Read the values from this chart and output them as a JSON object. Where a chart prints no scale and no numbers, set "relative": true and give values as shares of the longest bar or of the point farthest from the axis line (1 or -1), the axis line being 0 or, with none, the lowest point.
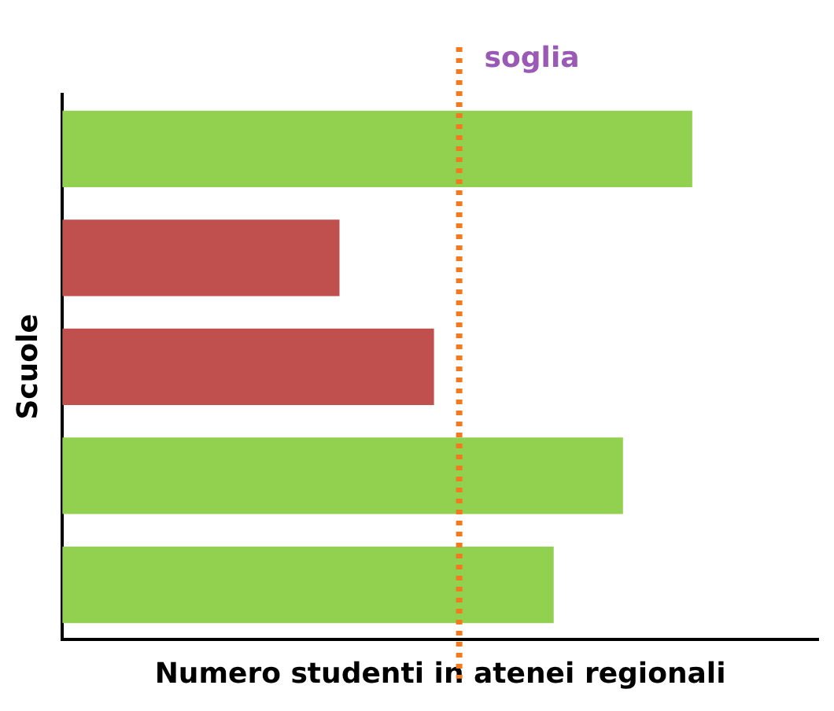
{
  "chart_data": {
    "type": "bar",
    "orientation": "horizontal",
    "relative": true,
    "xlabel": "Numero studenti in atenei regionali",
    "ylabel": "Scuole",
    "categories": [
      null,
      null,
      null,
      null,
      null
    ],
    "values": [
      1,
      0.44,
      0.59,
      0.89,
      0.78
    ],
    "colors": [
      "#92d050",
      "#c0504d",
      "#c0504d",
      "#92d050",
      "#92d050"
    ],
    "ref_lines": [
      {
        "axis": "x",
        "value": 0.63,
        "label": "soglia",
        "color": "#f07a20",
        "line_style": "dotted"
      }
    ],
    "grid": false,
    "legend": false
  }
}
